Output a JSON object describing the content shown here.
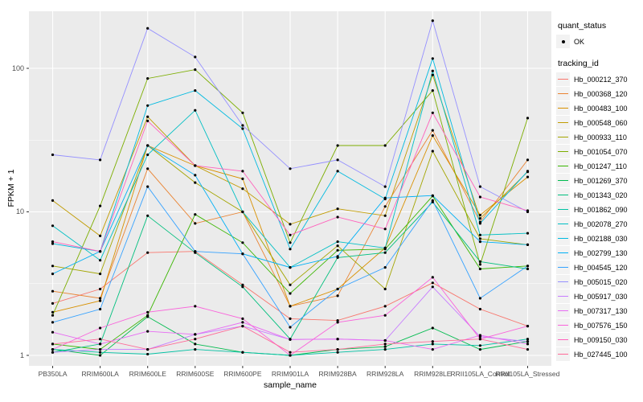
{
  "chart_data": {
    "type": "line",
    "title": "",
    "xlabel": "sample_name",
    "ylabel": "FPKM + 1",
    "y_scale": "log10",
    "y_tick_labels": [
      "1",
      "10",
      "100"
    ],
    "y_tick_values": [
      1,
      10,
      100
    ],
    "y_minor_values": [
      3.162,
      31.62
    ],
    "ylim": [
      0.85,
      260
    ],
    "grid": true,
    "legend_position": "right",
    "panel_bg": "#EBEBEB",
    "grid_color": "#FFFFFF",
    "tick_label_color": "#4D4D4D",
    "point_color": "#000000",
    "categories": [
      "PB350LA",
      "RRIM600LA",
      "RRIM600LE",
      "RRIM600SE",
      "RRIM600PE",
      "RRIM901LA",
      "RRIM928BA",
      "RRIM928LA",
      "RRIM928LE",
      "RRII105LA_Control",
      "RRII105LA_Stressed"
    ],
    "legend": {
      "quant_status_title": "quant_status",
      "quant_status_items": [
        {
          "label": "OK",
          "marker": "black-point"
        }
      ],
      "tracking_title": "tracking_id"
    },
    "series": [
      {
        "name": "Hb_000212_370",
        "color": "#F8766D",
        "values": [
          2.3,
          2.9,
          5.2,
          5.3,
          3.1,
          1.8,
          1.75,
          2.2,
          3.2,
          2.1,
          1.6
        ]
      },
      {
        "name": "Hb_000368_120",
        "color": "#EA8331",
        "values": [
          2.8,
          2.5,
          20,
          8.3,
          10,
          2.2,
          2.6,
          10.9,
          37,
          8.5,
          23
        ]
      },
      {
        "name": "Hb_000483_100",
        "color": "#D89000",
        "values": [
          2.0,
          2.4,
          29,
          21,
          17,
          2.2,
          2.9,
          5.6,
          34,
          9.5,
          17.5
        ]
      },
      {
        "name": "Hb_000548_060",
        "color": "#C09B00",
        "values": [
          12,
          6.8,
          46,
          21,
          14.5,
          8.2,
          10.5,
          9.4,
          90,
          9.0,
          19
        ]
      },
      {
        "name": "Hb_000933_110",
        "color": "#A3A500",
        "values": [
          4.2,
          3.7,
          29,
          16,
          10,
          3.1,
          5.8,
          2.9,
          26.5,
          6.5,
          5.9
        ]
      },
      {
        "name": "Hb_001054_070",
        "color": "#7CAE00",
        "values": [
          1.9,
          11,
          85,
          98,
          49,
          6.1,
          29,
          29,
          70,
          4.3,
          45
        ]
      },
      {
        "name": "Hb_001247_110",
        "color": "#39B600",
        "values": [
          1.2,
          1.1,
          1.9,
          9.6,
          6.1,
          2.7,
          5.4,
          5.5,
          12.9,
          4.0,
          4.2
        ]
      },
      {
        "name": "Hb_001269_370",
        "color": "#00BB4E",
        "values": [
          1.1,
          1.0,
          1.86,
          1.2,
          1.05,
          1.0,
          1.1,
          1.15,
          1.55,
          1.1,
          1.25
        ]
      },
      {
        "name": "Hb_001343_020",
        "color": "#00BF7D",
        "values": [
          1.05,
          1.2,
          9.4,
          5.2,
          3.0,
          1.3,
          4.8,
          5.2,
          11.7,
          4.5,
          4.0
        ]
      },
      {
        "name": "Hb_001862_090",
        "color": "#00C1A3",
        "values": [
          1.1,
          1.05,
          1.02,
          1.1,
          1.05,
          1.0,
          1.05,
          1.1,
          1.2,
          1.17,
          1.3
        ]
      },
      {
        "name": "Hb_002078_270",
        "color": "#00BFC4",
        "values": [
          8,
          4.6,
          25,
          51,
          10,
          4.1,
          6.2,
          5.6,
          96,
          6.9,
          7.1
        ]
      },
      {
        "name": "Hb_002188_030",
        "color": "#00BAE0",
        "values": [
          6.0,
          5.3,
          55,
          70,
          38,
          5.5,
          19.2,
          12.3,
          117,
          8.3,
          19.2
        ]
      },
      {
        "name": "Hb_002799_130",
        "color": "#00B0F6",
        "values": [
          3.7,
          5.3,
          29,
          18,
          5.1,
          4.1,
          4.9,
          12.5,
          13,
          6.2,
          5.9
        ]
      },
      {
        "name": "Hb_004545_120",
        "color": "#35A2FF",
        "values": [
          1.7,
          2.1,
          15,
          5.3,
          5.1,
          1.57,
          2.9,
          4.1,
          12,
          2.5,
          4.2
        ]
      },
      {
        "name": "Hb_005015_020",
        "color": "#9590FF",
        "values": [
          25,
          23,
          190,
          120,
          40,
          20,
          23,
          15,
          215,
          15,
          10
        ]
      },
      {
        "name": "Hb_005917_030",
        "color": "#C77CFF",
        "values": [
          1.05,
          1.1,
          1.1,
          1.4,
          1.6,
          1.29,
          1.3,
          1.27,
          3.0,
          1.35,
          1.25
        ]
      },
      {
        "name": "Hb_007317_130",
        "color": "#E76BF3",
        "values": [
          1.45,
          1.2,
          1.47,
          1.4,
          1.7,
          1.29,
          1.3,
          1.27,
          1.1,
          1.38,
          1.2
        ]
      },
      {
        "name": "Hb_007576_150",
        "color": "#FA62DB",
        "values": [
          1.1,
          1.55,
          2.0,
          2.2,
          1.8,
          1.0,
          1.7,
          1.9,
          3.5,
          1.3,
          1.6
        ]
      },
      {
        "name": "Hb_009150_030",
        "color": "#FF62BC",
        "values": [
          6.2,
          5.3,
          43,
          21,
          19.2,
          6.9,
          9.2,
          7.6,
          49,
          12.7,
          10.2
        ]
      },
      {
        "name": "Hb_027445_100",
        "color": "#FF6A98",
        "values": [
          1.2,
          1.3,
          1.1,
          1.3,
          1.6,
          1.05,
          1.1,
          1.2,
          1.25,
          1.3,
          1.1
        ]
      }
    ]
  }
}
